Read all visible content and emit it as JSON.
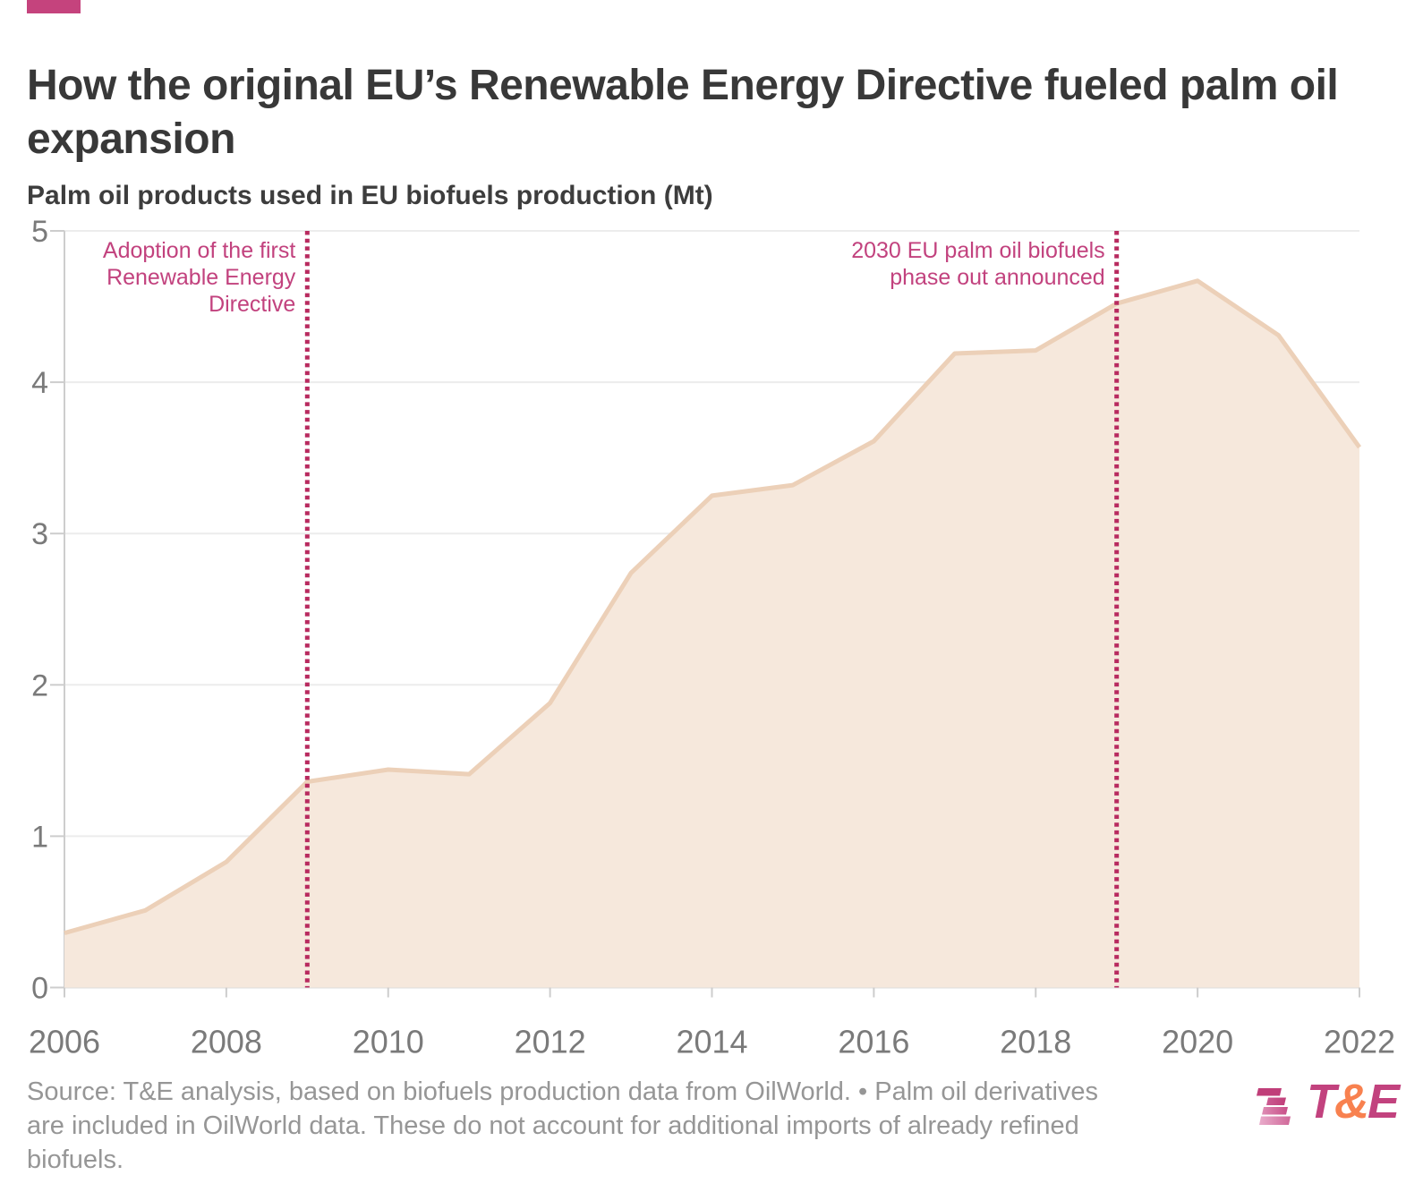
{
  "header": {
    "accent_color": "#c5437d",
    "title": "How the original EU’s Renewable Energy Directive fueled palm oil\nexpansion",
    "subtitle": "Palm oil products used in EU biofuels production (Mt)"
  },
  "source": {
    "text": "Source: T&E analysis, based on biofuels production data from OilWorld. • Palm oil derivatives\nare included in OilWorld data. These do not account for additional imports of already refined\nbiofuels."
  },
  "logo": {
    "t": "T",
    "amp": "&",
    "e": "E"
  },
  "chart_data": {
    "type": "area",
    "title": "How the original EU’s Renewable Energy Directive fueled palm oil expansion",
    "ylabel": "Palm oil products used in EU biofuels production (Mt)",
    "x": [
      2006,
      2007,
      2008,
      2009,
      2010,
      2011,
      2012,
      2013,
      2014,
      2015,
      2016,
      2017,
      2018,
      2019,
      2020,
      2021,
      2022
    ],
    "values": [
      0.36,
      0.51,
      0.83,
      1.36,
      1.44,
      1.41,
      1.88,
      2.74,
      3.25,
      3.32,
      3.61,
      4.19,
      4.21,
      4.52,
      4.67,
      4.31,
      3.57
    ],
    "xlim": [
      2006,
      2022
    ],
    "ylim": [
      0,
      5
    ],
    "xticks": [
      2006,
      2008,
      2010,
      2012,
      2014,
      2016,
      2018,
      2020,
      2022
    ],
    "yticks": [
      0,
      1,
      2,
      3,
      4,
      5
    ],
    "grid": "horizontal",
    "legend": "none",
    "area_fill": "#f6e8dc",
    "line_color": "#ecd0b8",
    "annotation_color": "#c2427e",
    "rule_color": "#b82a5f",
    "axis_label_color": "#7a7a7a",
    "annotations": [
      {
        "year": 2009,
        "text": "Adoption of the first\nRenewable Energy\nDirective"
      },
      {
        "year": 2019,
        "text": "2030 EU palm oil biofuels\nphase out announced"
      }
    ]
  }
}
